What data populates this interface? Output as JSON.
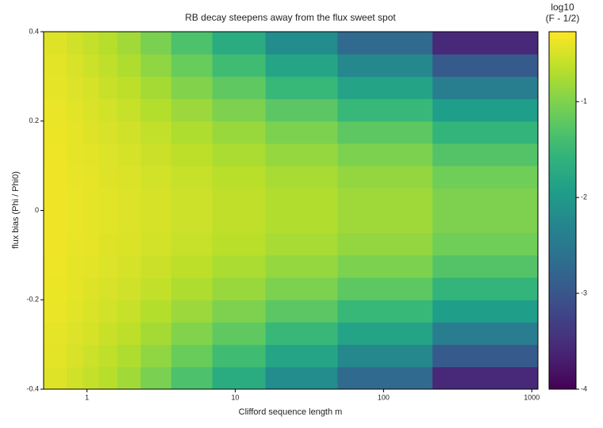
{
  "chart_data": {
    "type": "heatmap",
    "title": "RB decay steepens away from the flux sweet spot",
    "xlabel": "Clifford sequence length m",
    "ylabel": "flux bias (Phi / Phi0)",
    "colorbar_title": [
      "log10",
      "(F - 1/2)"
    ],
    "xscale": "log",
    "xlim": [
      0.51,
      1100
    ],
    "xticks": [
      1,
      10,
      100,
      1000
    ],
    "ylim": [
      -0.4,
      0.4
    ],
    "yticks": [
      0.4,
      0.2,
      0,
      -0.2,
      -0.4
    ],
    "clim": [
      -4,
      -0.27
    ],
    "cticks": [
      -1,
      -2,
      -3,
      -4
    ],
    "colormap": "viridis",
    "xbins": [
      0.51,
      0.73,
      0.94,
      1.2,
      1.6,
      2.3,
      3.7,
      7,
      16,
      49,
      214,
      1100
    ],
    "ybins": [
      -0.4,
      -0.35,
      -0.3,
      -0.25,
      -0.2,
      -0.15,
      -0.1,
      -0.05,
      0,
      0.05,
      0.1,
      0.15,
      0.2,
      0.25,
      0.3,
      0.35,
      0.4
    ],
    "z": [
      [
        -0.44,
        -0.53,
        -0.59,
        -0.68,
        -0.8,
        -1.03,
        -1.34,
        -1.7,
        -2.19,
        -2.73,
        -3.59
      ],
      [
        -0.42,
        -0.49,
        -0.55,
        -0.62,
        -0.72,
        -0.9,
        -1.14,
        -1.43,
        -1.82,
        -2.25,
        -2.95
      ],
      [
        -0.4,
        -0.46,
        -0.5,
        -0.57,
        -0.64,
        -0.78,
        -0.98,
        -1.2,
        -1.5,
        -1.84,
        -2.4
      ],
      [
        -0.38,
        -0.43,
        -0.47,
        -0.52,
        -0.58,
        -0.69,
        -0.83,
        -1.01,
        -1.24,
        -1.5,
        -1.93
      ],
      [
        -0.37,
        -0.41,
        -0.44,
        -0.49,
        -0.53,
        -0.61,
        -0.72,
        -0.85,
        -1.02,
        -1.22,
        -1.56
      ],
      [
        -0.36,
        -0.4,
        -0.42,
        -0.46,
        -0.5,
        -0.56,
        -0.64,
        -0.74,
        -0.87,
        -1.02,
        -1.29
      ],
      [
        -0.35,
        -0.39,
        -0.41,
        -0.44,
        -0.47,
        -0.52,
        -0.58,
        -0.66,
        -0.76,
        -0.88,
        -1.1
      ],
      [
        -0.35,
        -0.38,
        -0.4,
        -0.43,
        -0.46,
        -0.5,
        -0.55,
        -0.62,
        -0.71,
        -0.81,
        -1.01
      ],
      [
        -0.35,
        -0.38,
        -0.4,
        -0.43,
        -0.46,
        -0.5,
        -0.55,
        -0.62,
        -0.71,
        -0.81,
        -1.01
      ],
      [
        -0.35,
        -0.39,
        -0.41,
        -0.44,
        -0.47,
        -0.52,
        -0.58,
        -0.66,
        -0.76,
        -0.88,
        -1.1
      ],
      [
        -0.36,
        -0.4,
        -0.42,
        -0.46,
        -0.5,
        -0.56,
        -0.64,
        -0.74,
        -0.87,
        -1.02,
        -1.29
      ],
      [
        -0.37,
        -0.41,
        -0.44,
        -0.49,
        -0.53,
        -0.61,
        -0.72,
        -0.85,
        -1.02,
        -1.22,
        -1.56
      ],
      [
        -0.38,
        -0.43,
        -0.47,
        -0.52,
        -0.58,
        -0.69,
        -0.83,
        -1.01,
        -1.24,
        -1.5,
        -1.93
      ],
      [
        -0.4,
        -0.46,
        -0.5,
        -0.57,
        -0.64,
        -0.78,
        -0.98,
        -1.2,
        -1.5,
        -1.84,
        -2.4
      ],
      [
        -0.42,
        -0.49,
        -0.55,
        -0.62,
        -0.72,
        -0.9,
        -1.14,
        -1.43,
        -1.82,
        -2.25,
        -2.95
      ],
      [
        -0.44,
        -0.53,
        -0.59,
        -0.68,
        -0.8,
        -1.03,
        -1.34,
        -1.7,
        -2.19,
        -2.73,
        -3.59
      ]
    ]
  }
}
